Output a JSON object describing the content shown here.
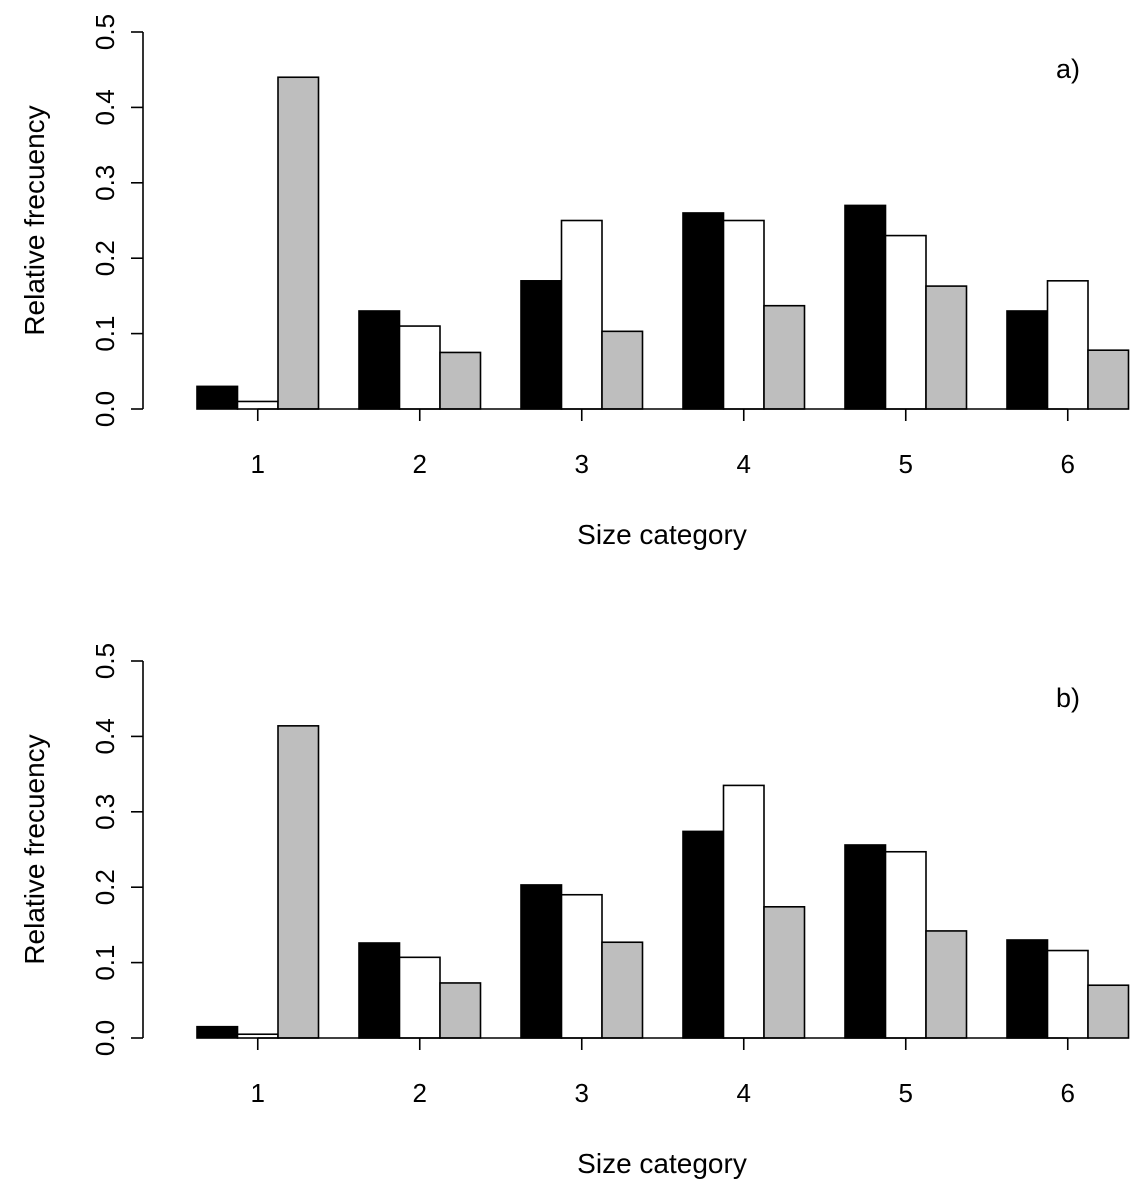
{
  "chart_data": [
    {
      "type": "bar",
      "panel_label": "a)",
      "categories": [
        "1",
        "2",
        "3",
        "4",
        "5",
        "6"
      ],
      "series": [
        {
          "name": "black",
          "color": "#000000",
          "values": [
            0.03,
            0.13,
            0.17,
            0.26,
            0.27,
            0.13
          ]
        },
        {
          "name": "white",
          "color": "#ffffff",
          "values": [
            0.01,
            0.11,
            0.25,
            0.25,
            0.23,
            0.17
          ]
        },
        {
          "name": "gray",
          "color": "#bebebe",
          "values": [
            0.44,
            0.075,
            0.103,
            0.137,
            0.163,
            0.078
          ]
        }
      ],
      "xlabel": "Size category",
      "ylabel": "Relative frecuency",
      "ylim": [
        0,
        0.5
      ],
      "yticks": [
        "0.0",
        "0.1",
        "0.2",
        "0.3",
        "0.4",
        "0.5"
      ]
    },
    {
      "type": "bar",
      "panel_label": "b)",
      "categories": [
        "1",
        "2",
        "3",
        "4",
        "5",
        "6"
      ],
      "series": [
        {
          "name": "black",
          "color": "#000000",
          "values": [
            0.015,
            0.126,
            0.203,
            0.274,
            0.256,
            0.13
          ]
        },
        {
          "name": "white",
          "color": "#ffffff",
          "values": [
            0.005,
            0.107,
            0.19,
            0.335,
            0.247,
            0.116
          ]
        },
        {
          "name": "gray",
          "color": "#bebebe",
          "values": [
            0.414,
            0.073,
            0.127,
            0.174,
            0.142,
            0.07
          ]
        }
      ],
      "xlabel": "Size category",
      "ylabel": "Relative frecuency",
      "ylim": [
        0,
        0.5
      ],
      "yticks": [
        "0.0",
        "0.1",
        "0.2",
        "0.3",
        "0.4",
        "0.5"
      ]
    }
  ]
}
